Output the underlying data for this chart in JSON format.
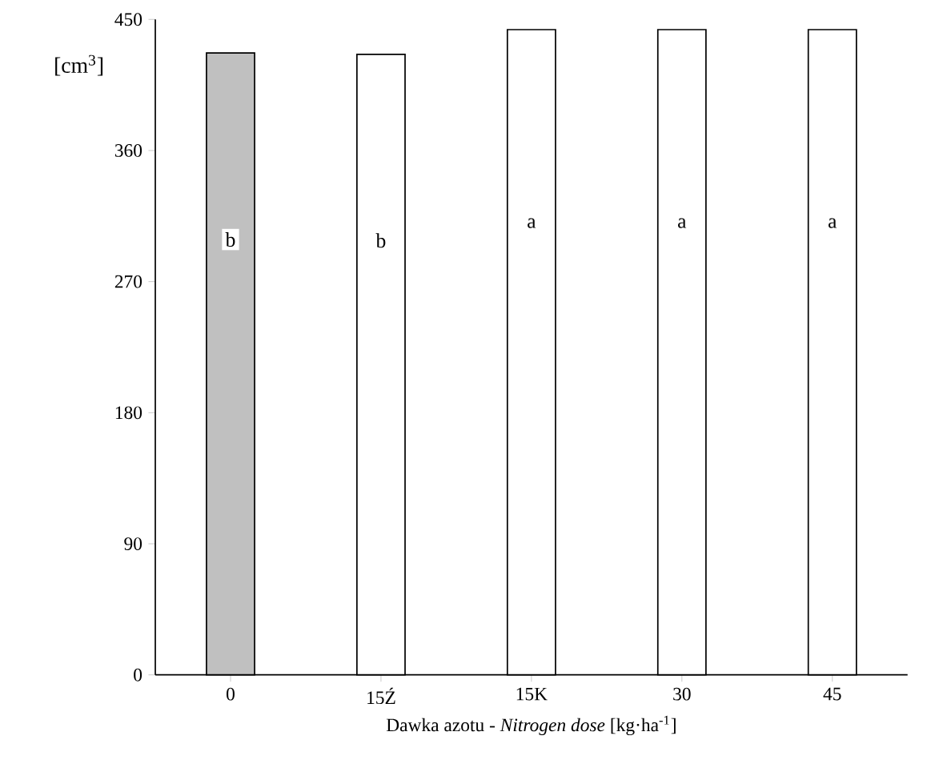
{
  "chart_data": {
    "type": "bar",
    "ylabel": "[cm$^{3}$]",
    "xlabel": "Dawka azotu - *Nitrogen dose* [kg·ha$^{-1}$]",
    "categories": [
      "0",
      "15Ź",
      "15K",
      "30",
      "45"
    ],
    "values": [
      427,
      426,
      443,
      443,
      443
    ],
    "colors": [
      "#c0c0c0",
      "#ffffff",
      "#ffffff",
      "#ffffff",
      "#ffffff"
    ],
    "value_labels": [
      "b",
      "b",
      "a",
      "a",
      "a"
    ],
    "ylim": [
      0,
      450
    ],
    "yticks": [
      0,
      90,
      180,
      270,
      360,
      450
    ]
  }
}
